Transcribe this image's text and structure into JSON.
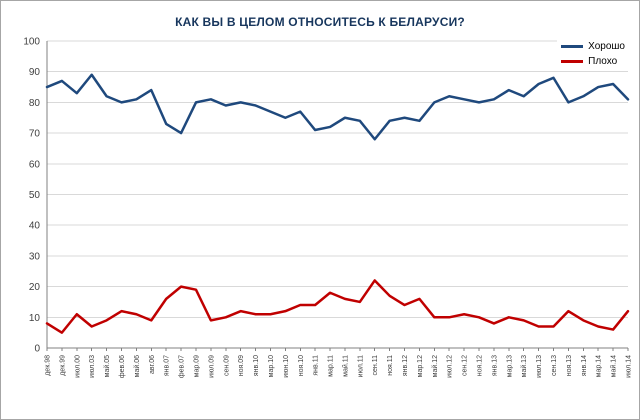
{
  "window": {
    "background": "#ffffff",
    "border_color": "#a6a6a6"
  },
  "chart_data": {
    "type": "line",
    "title": "КАК ВЫ В ЦЕЛОМ ОТНОСИТЕСЬ К БЕЛАРУСИ?",
    "title_color": "#17365d",
    "xlabel": "",
    "ylabel": "",
    "ylim": [
      0,
      100
    ],
    "ytick_step": 10,
    "grid": true,
    "grid_color": "#d9d9d9",
    "axis_color": "#808080",
    "tick_label_color": "#3f3f3f",
    "legend_position": "top-right",
    "categories": [
      "дек.98",
      "дек.99",
      "июл.00",
      "июл.03",
      "май.05",
      "фев.06",
      "май.06",
      "авг.06",
      "янв.07",
      "фев.07",
      "мар.09",
      "июл.09",
      "сен.09",
      "ноя.09",
      "янв.10",
      "мар.10",
      "июн.10",
      "ноя.10",
      "янв.11",
      "мар.11",
      "май.11",
      "июл.11",
      "сен.11",
      "ноя.11",
      "янв.12",
      "мар.12",
      "май.12",
      "июл.12",
      "сен.12",
      "ноя.12",
      "янв.13",
      "мар.13",
      "май.13",
      "июл.13",
      "сен.13",
      "ноя.13",
      "янв.14",
      "мар.14",
      "май.14",
      "июл.14"
    ],
    "series": [
      {
        "name": "Хорошо",
        "color": "#1f497d",
        "values": [
          85,
          87,
          83,
          89,
          82,
          80,
          81,
          84,
          73,
          70,
          80,
          81,
          79,
          80,
          79,
          77,
          75,
          77,
          71,
          72,
          75,
          74,
          68,
          74,
          75,
          74,
          80,
          82,
          81,
          80,
          81,
          84,
          82,
          86,
          88,
          80,
          82,
          85,
          86,
          81
        ]
      },
      {
        "name": "Плохо",
        "color": "#c00000",
        "values": [
          8,
          5,
          11,
          7,
          9,
          12,
          11,
          9,
          16,
          20,
          19,
          9,
          10,
          12,
          11,
          11,
          12,
          14,
          14,
          18,
          16,
          15,
          22,
          17,
          14,
          16,
          10,
          10,
          11,
          10,
          8,
          10,
          9,
          7,
          7,
          12,
          9,
          7,
          6,
          12
        ]
      }
    ]
  }
}
